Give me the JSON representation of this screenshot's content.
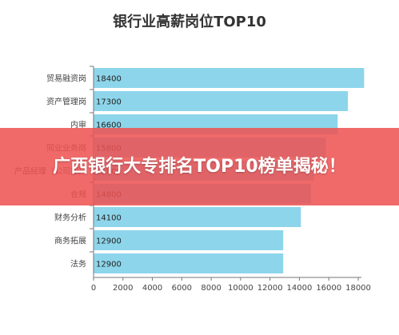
{
  "colors": {
    "bar": "#8DD5EA",
    "axis": "#777777",
    "banner": "#EE5252"
  },
  "banner": {
    "text": "广西银行大专排名TOP10榜单揭秘！"
  },
  "chart_data": {
    "type": "bar",
    "orientation": "horizontal",
    "title": "银行业高薪岗位TOP10",
    "categories": [
      "贸易融资岗",
      "资产管理岗",
      "内审",
      "同业业务岗",
      "产品经理（公司部）",
      "合规",
      "财务分析",
      "商务拓展",
      "法务"
    ],
    "values": [
      18400,
      17300,
      16600,
      15800,
      15000,
      14800,
      14100,
      12900,
      12900
    ],
    "data_labels": [
      "18400",
      "17300",
      "16600",
      "15800",
      "15000",
      "14800",
      "14100",
      "12900",
      "12900"
    ],
    "xlim": [
      0,
      18000
    ],
    "xticks": [
      0,
      2000,
      4000,
      6000,
      8000,
      10000,
      12000,
      14000,
      16000,
      18000
    ],
    "xlabel": "",
    "ylabel": "",
    "grid": false,
    "legend": "none"
  }
}
